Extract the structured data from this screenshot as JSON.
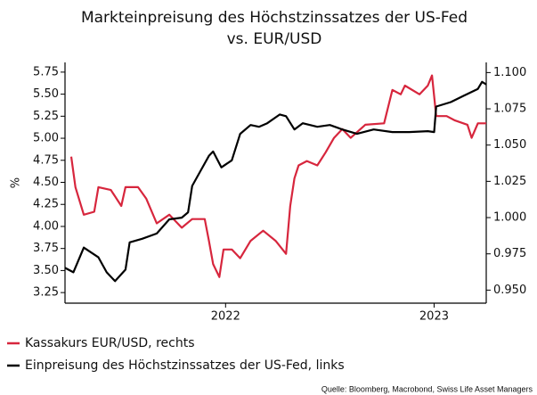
{
  "chart_data": {
    "type": "line",
    "title": [
      "Markteinpreisung des Höchstzinssatzes der US-Fed",
      "vs. EUR/USD"
    ],
    "ylabel": "%",
    "source": "Quelle: Bloomberg, Macrobond, Swiss Life Asset Managers",
    "xlim": [
      2021.23,
      2023.25
    ],
    "xticks": [
      2022,
      2023
    ],
    "ylim": [
      3.13,
      5.86
    ],
    "yticks": [
      {
        "value": 3.25,
        "label": "3.25"
      },
      {
        "value": 3.5,
        "label": "3.50"
      },
      {
        "value": 3.75,
        "label": "3.75"
      },
      {
        "value": 4,
        "label": "4.00"
      },
      {
        "value": 4.25,
        "label": "4.25"
      },
      {
        "value": 4.5,
        "label": "4.50"
      },
      {
        "value": 4.75,
        "label": "4.75"
      },
      {
        "value": 5,
        "label": "5.00"
      },
      {
        "value": 5.25,
        "label": "5.25"
      },
      {
        "value": 5.5,
        "label": "5.50"
      },
      {
        "value": 5.75,
        "label": "5.75"
      }
    ],
    "y2lim": [
      0.941,
      1.107
    ],
    "y2ticks": [
      {
        "value": 0.95,
        "label": "0.950"
      },
      {
        "value": 0.975,
        "label": "0.975"
      },
      {
        "value": 1,
        "label": "1.000"
      },
      {
        "value": 1.025,
        "label": "1.025"
      },
      {
        "value": 1.05,
        "label": "1.050"
      },
      {
        "value": 1.075,
        "label": "1.075"
      },
      {
        "value": 1.1,
        "label": "1.100"
      }
    ],
    "series": [
      {
        "name": "Kassakurs EUR/USD, rechts",
        "color": "#d7263d",
        "axis": "y2",
        "x": [
          2021.26,
          2021.28,
          2021.32,
          2021.37,
          2021.39,
          2021.45,
          2021.5,
          2021.52,
          2021.58,
          2021.62,
          2021.67,
          2021.73,
          2021.79,
          2021.84,
          2021.9,
          2021.92,
          2021.94,
          2021.97,
          2021.99,
          2022.03,
          2022.07,
          2022.12,
          2022.18,
          2022.24,
          2022.29,
          2022.31,
          2022.33,
          2022.35,
          2022.39,
          2022.44,
          2022.48,
          2022.52,
          2022.56,
          2022.6,
          2022.67,
          2022.76,
          2022.8,
          2022.84,
          2022.86,
          2022.93,
          2022.97,
          2022.99,
          2023.01,
          2023.06,
          2023.1,
          2023.16,
          2023.18,
          2023.21,
          2023.25
        ],
        "values": [
          1.042,
          1.021,
          1.002,
          1.004,
          1.021,
          1.019,
          1.008,
          1.021,
          1.021,
          1.013,
          0.996,
          1.002,
          0.993,
          0.999,
          0.999,
          0.984,
          0.968,
          0.959,
          0.978,
          0.978,
          0.972,
          0.984,
          0.991,
          0.984,
          0.975,
          1.008,
          1.027,
          1.036,
          1.039,
          1.036,
          1.045,
          1.055,
          1.061,
          1.055,
          1.064,
          1.065,
          1.088,
          1.085,
          1.091,
          1.085,
          1.091,
          1.098,
          1.07,
          1.07,
          1.067,
          1.064,
          1.055,
          1.065,
          1.065
        ]
      },
      {
        "name": "Einpreisung des Höchstzinssatzes der US-Fed, links",
        "color": "#000000",
        "x": [
          2021.23,
          2021.27,
          2021.32,
          2021.39,
          2021.43,
          2021.47,
          2021.52,
          2021.54,
          2021.6,
          2021.67,
          2021.73,
          2021.79,
          2021.82,
          2021.84,
          2021.88,
          2021.92,
          2021.94,
          2021.98,
          2022.03,
          2022.07,
          2022.12,
          2022.16,
          2022.2,
          2022.26,
          2022.29,
          2022.33,
          2022.37,
          2022.44,
          2022.5,
          2022.56,
          2022.63,
          2022.71,
          2022.8,
          2022.88,
          2022.97,
          2023.0,
          2023.01,
          2023.08,
          2023.14,
          2023.21,
          2023.23,
          2023.25
        ],
        "values": [
          3.53,
          3.48,
          3.76,
          3.65,
          3.48,
          3.38,
          3.51,
          3.82,
          3.86,
          3.92,
          4.08,
          4.1,
          4.16,
          4.46,
          4.63,
          4.8,
          4.85,
          4.67,
          4.75,
          5.05,
          5.15,
          5.13,
          5.17,
          5.27,
          5.25,
          5.1,
          5.17,
          5.13,
          5.15,
          5.1,
          5.05,
          5.1,
          5.07,
          5.07,
          5.08,
          5.07,
          5.36,
          5.41,
          5.48,
          5.56,
          5.64,
          5.61
        ]
      }
    ]
  }
}
